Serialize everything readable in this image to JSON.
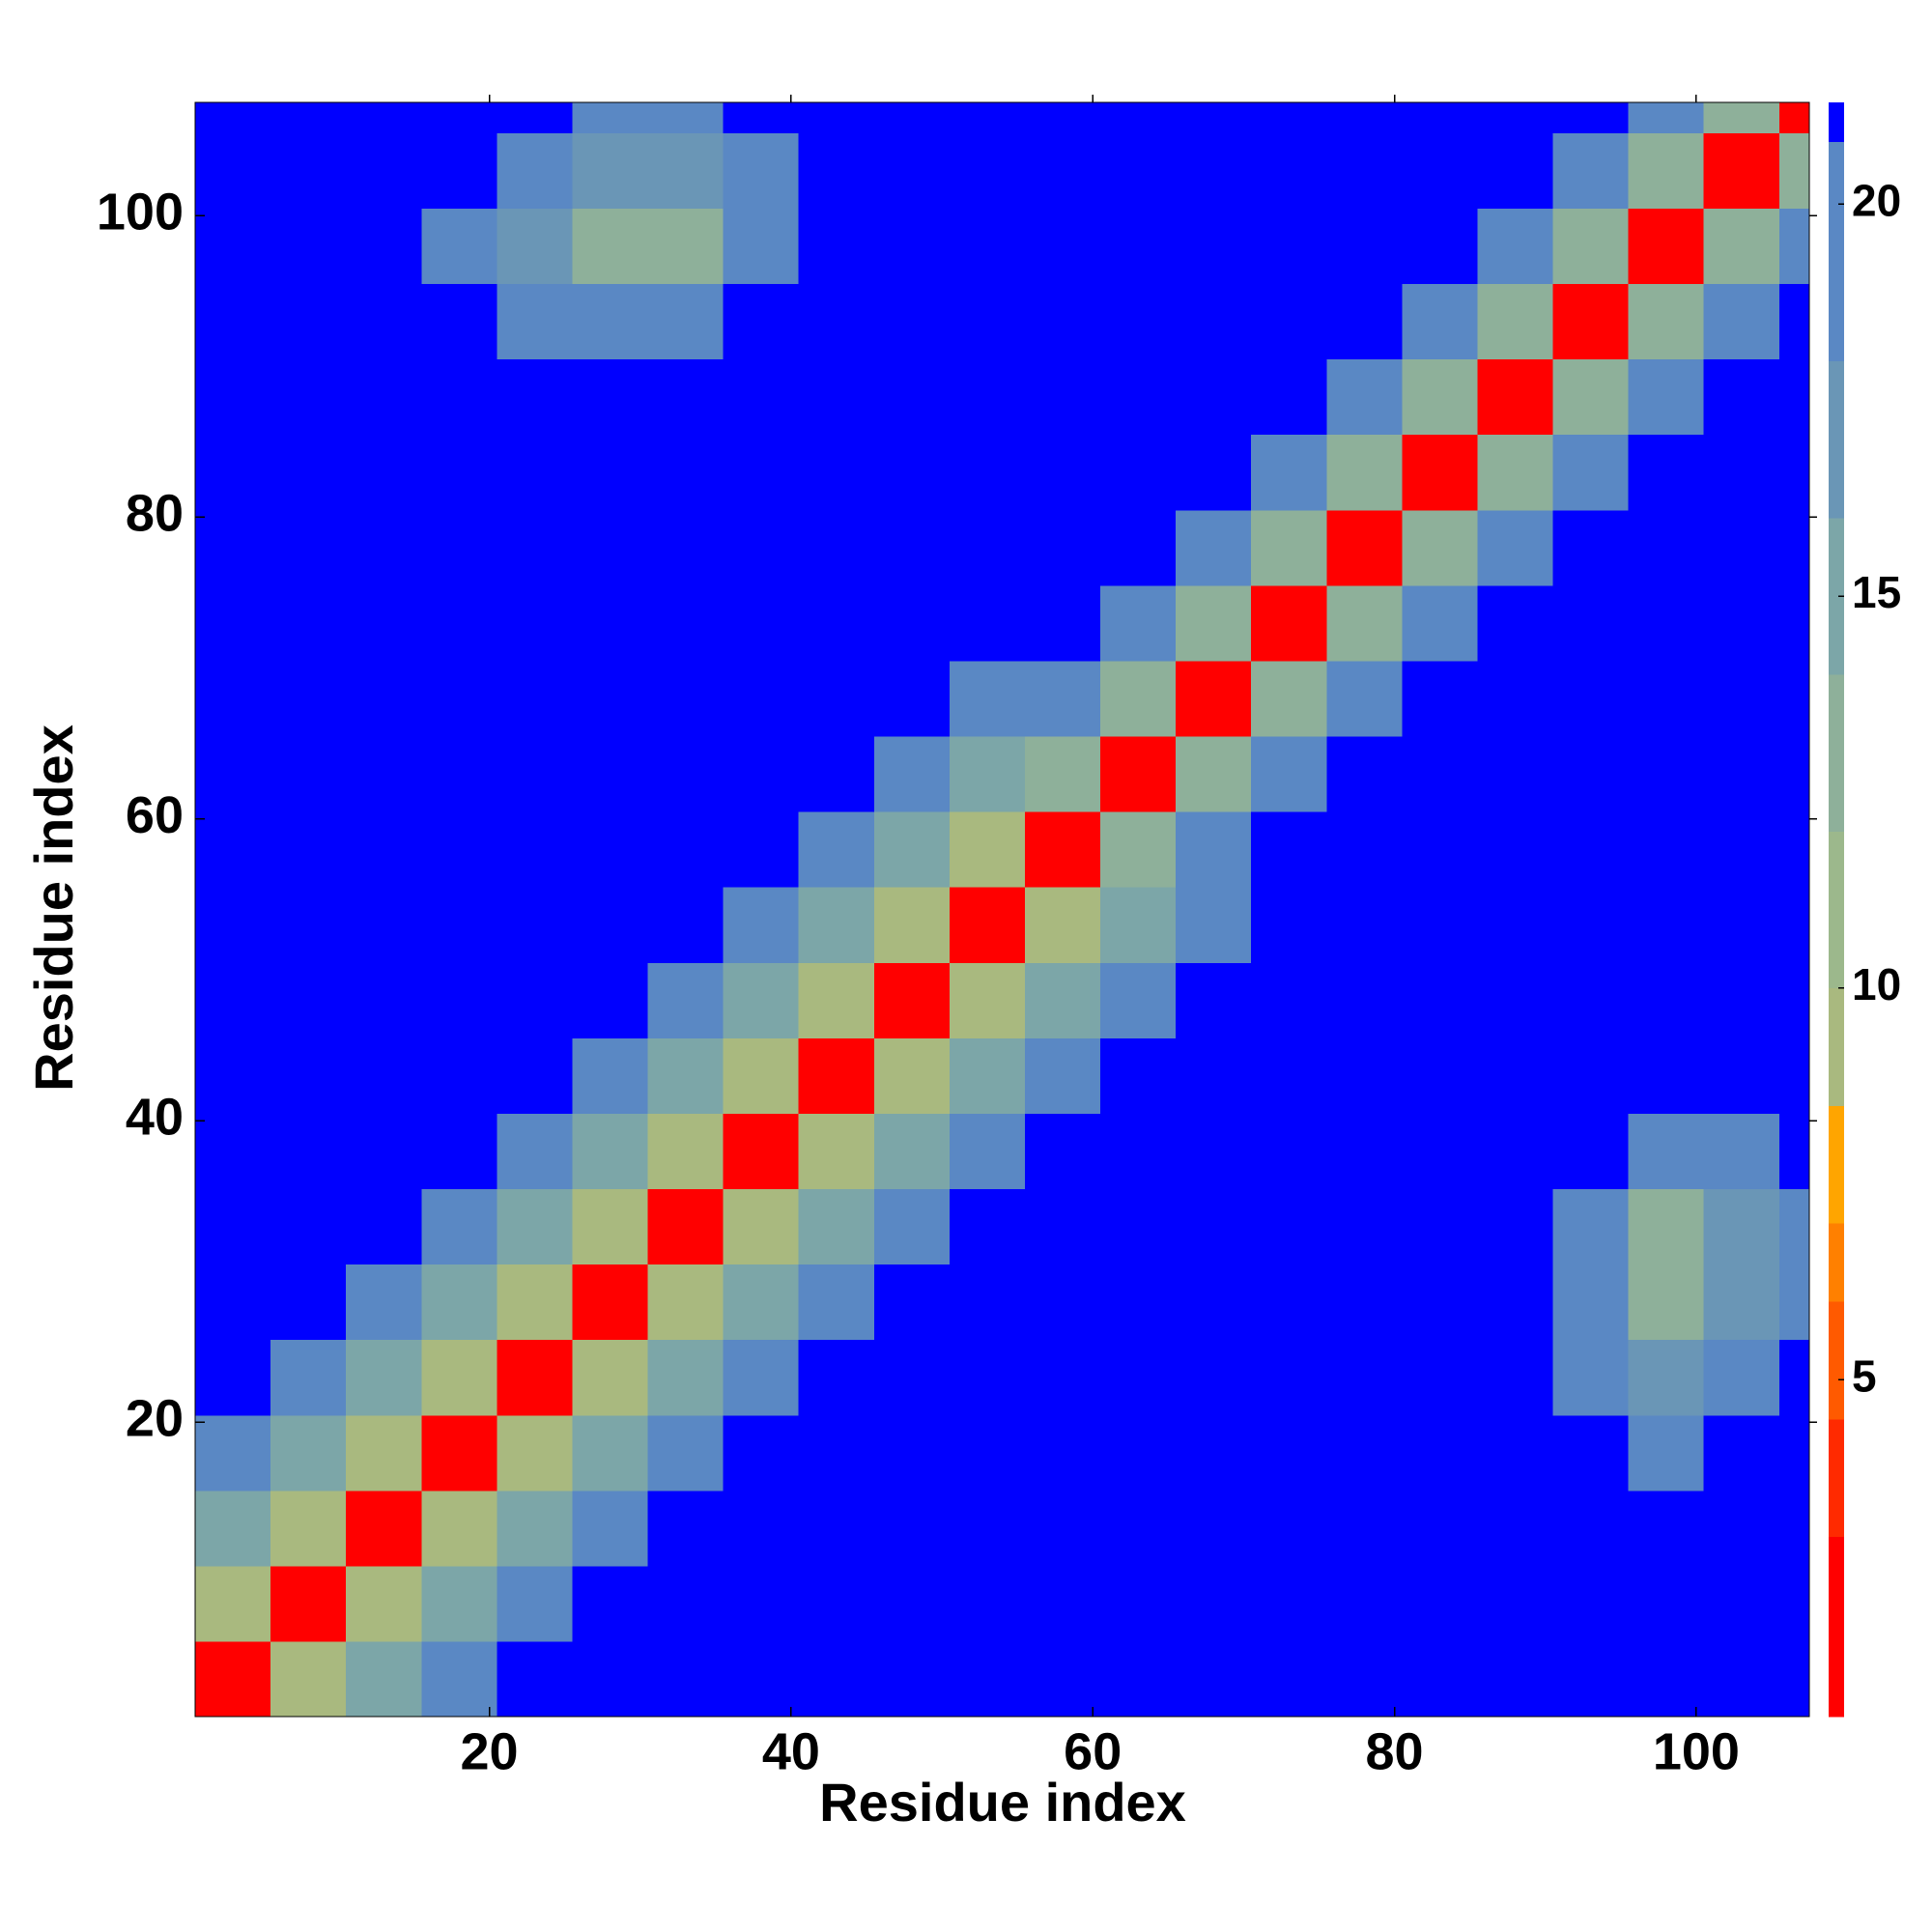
{
  "chart_data": {
    "type": "heatmap",
    "xlabel": "Residue index",
    "ylabel": "Residue index",
    "xlim": [
      0.5,
      107.5
    ],
    "ylim": [
      0.5,
      107.5
    ],
    "xticks": [
      20,
      40,
      60,
      80,
      100
    ],
    "yticks": [
      20,
      40,
      60,
      80,
      100
    ],
    "xbins": [
      0.5,
      5.5,
      10.5,
      15.5,
      20.5,
      25.5,
      30.5,
      35.5,
      40.5,
      45.5,
      50.5,
      55.5,
      60.5,
      65.5,
      70.5,
      75.5,
      80.5,
      85.5,
      90.5,
      95.5,
      100.5,
      105.5,
      107.5
    ],
    "ybins": [
      0.5,
      5.5,
      10.5,
      15.5,
      20.5,
      25.5,
      30.5,
      35.5,
      40.5,
      45.5,
      50.5,
      55.5,
      60.5,
      65.5,
      70.5,
      75.5,
      80.5,
      85.5,
      90.5,
      95.5,
      100.5,
      105.5,
      107.5
    ],
    "levels": [
      0.7,
      3,
      4.5,
      6,
      7,
      8.5,
      10,
      12,
      14,
      16,
      18,
      20.8,
      21.3
    ],
    "colors": [
      "#ff0000",
      "#ff2a00",
      "#ff5a00",
      "#ff8000",
      "#ffa500",
      "#a9b97f",
      "#9cb88c",
      "#8eb09a",
      "#7ca6a8",
      "#6a96b6",
      "#5a88c4",
      "#0000ff"
    ],
    "colorbar_ticks": [
      5,
      10,
      15,
      20
    ],
    "z": [
      [
        2,
        9,
        14,
        18,
        21,
        21,
        21,
        21,
        21,
        21,
        21,
        21,
        21,
        21,
        21,
        21,
        21,
        21,
        21,
        21,
        21,
        21
      ],
      [
        9,
        2,
        9,
        14,
        18,
        21,
        21,
        21,
        21,
        21,
        21,
        21,
        21,
        21,
        21,
        21,
        21,
        21,
        21,
        21,
        21,
        21
      ],
      [
        14,
        9,
        2,
        9,
        14,
        18,
        21,
        21,
        21,
        21,
        21,
        21,
        21,
        21,
        21,
        21,
        21,
        21,
        21,
        21,
        21,
        21
      ],
      [
        18,
        14,
        9,
        2,
        9,
        14,
        18,
        21,
        21,
        21,
        21,
        21,
        21,
        21,
        21,
        21,
        21,
        21,
        21,
        18,
        21,
        21
      ],
      [
        21,
        18,
        14,
        9,
        2,
        9,
        14,
        18,
        21,
        21,
        21,
        21,
        21,
        21,
        21,
        21,
        21,
        21,
        19,
        16,
        18,
        21
      ],
      [
        21,
        21,
        18,
        14,
        9,
        2,
        9,
        14,
        18,
        21,
        21,
        21,
        21,
        21,
        21,
        21,
        21,
        21,
        18,
        12,
        17,
        19
      ],
      [
        21,
        21,
        21,
        18,
        14,
        9,
        2,
        9,
        14,
        18,
        21,
        21,
        21,
        21,
        21,
        21,
        21,
        21,
        19,
        12,
        17,
        19
      ],
      [
        21,
        21,
        21,
        21,
        18,
        14,
        9,
        2,
        9,
        14,
        18,
        21,
        21,
        21,
        21,
        21,
        21,
        21,
        21,
        18,
        19,
        21
      ],
      [
        21,
        21,
        21,
        21,
        21,
        18,
        14,
        9,
        2,
        9,
        14,
        18,
        21,
        21,
        21,
        21,
        21,
        21,
        21,
        21,
        21,
        21
      ],
      [
        21,
        21,
        21,
        21,
        21,
        21,
        18,
        14,
        9,
        2,
        9,
        14,
        18,
        21,
        21,
        21,
        21,
        21,
        21,
        21,
        21,
        21
      ],
      [
        21,
        21,
        21,
        21,
        21,
        21,
        21,
        18,
        14,
        9,
        2,
        9,
        14,
        18,
        21,
        21,
        21,
        21,
        21,
        21,
        21,
        21
      ],
      [
        21,
        21,
        21,
        21,
        21,
        21,
        21,
        21,
        18,
        14,
        9,
        2,
        12,
        18,
        21,
        21,
        21,
        21,
        21,
        21,
        21,
        21
      ],
      [
        21,
        21,
        21,
        21,
        21,
        21,
        21,
        21,
        21,
        18,
        14,
        12,
        2,
        12,
        18,
        21,
        21,
        21,
        21,
        21,
        21,
        21
      ],
      [
        21,
        21,
        21,
        21,
        21,
        21,
        21,
        21,
        21,
        21,
        18,
        18,
        12,
        2,
        12,
        18,
        21,
        21,
        21,
        21,
        21,
        21
      ],
      [
        21,
        21,
        21,
        21,
        21,
        21,
        21,
        21,
        21,
        21,
        21,
        21,
        18,
        12,
        2,
        12,
        18,
        21,
        21,
        21,
        21,
        21
      ],
      [
        21,
        21,
        21,
        21,
        21,
        21,
        21,
        21,
        21,
        21,
        21,
        21,
        21,
        18,
        12,
        2,
        12,
        18,
        21,
        21,
        21,
        21
      ],
      [
        21,
        21,
        21,
        21,
        21,
        21,
        21,
        21,
        21,
        21,
        21,
        21,
        21,
        21,
        18,
        12,
        2,
        12,
        18,
        21,
        21,
        21
      ],
      [
        21,
        21,
        21,
        21,
        21,
        21,
        21,
        21,
        21,
        21,
        21,
        21,
        21,
        21,
        21,
        18,
        12,
        2,
        12,
        18,
        21,
        21
      ],
      [
        21,
        21,
        21,
        21,
        19,
        18,
        19,
        21,
        21,
        21,
        21,
        21,
        21,
        21,
        21,
        21,
        18,
        12,
        2,
        12,
        18,
        21
      ],
      [
        21,
        21,
        21,
        18,
        16,
        12,
        12,
        18,
        21,
        21,
        21,
        21,
        21,
        21,
        21,
        21,
        21,
        18,
        12,
        2,
        12,
        18
      ],
      [
        21,
        21,
        21,
        21,
        18,
        17,
        17,
        19,
        21,
        21,
        21,
        21,
        21,
        21,
        21,
        21,
        21,
        21,
        18,
        12,
        2,
        12
      ],
      [
        21,
        21,
        21,
        21,
        21,
        19,
        19,
        21,
        21,
        21,
        21,
        21,
        21,
        21,
        21,
        21,
        21,
        21,
        21,
        18,
        12,
        2
      ]
    ]
  }
}
